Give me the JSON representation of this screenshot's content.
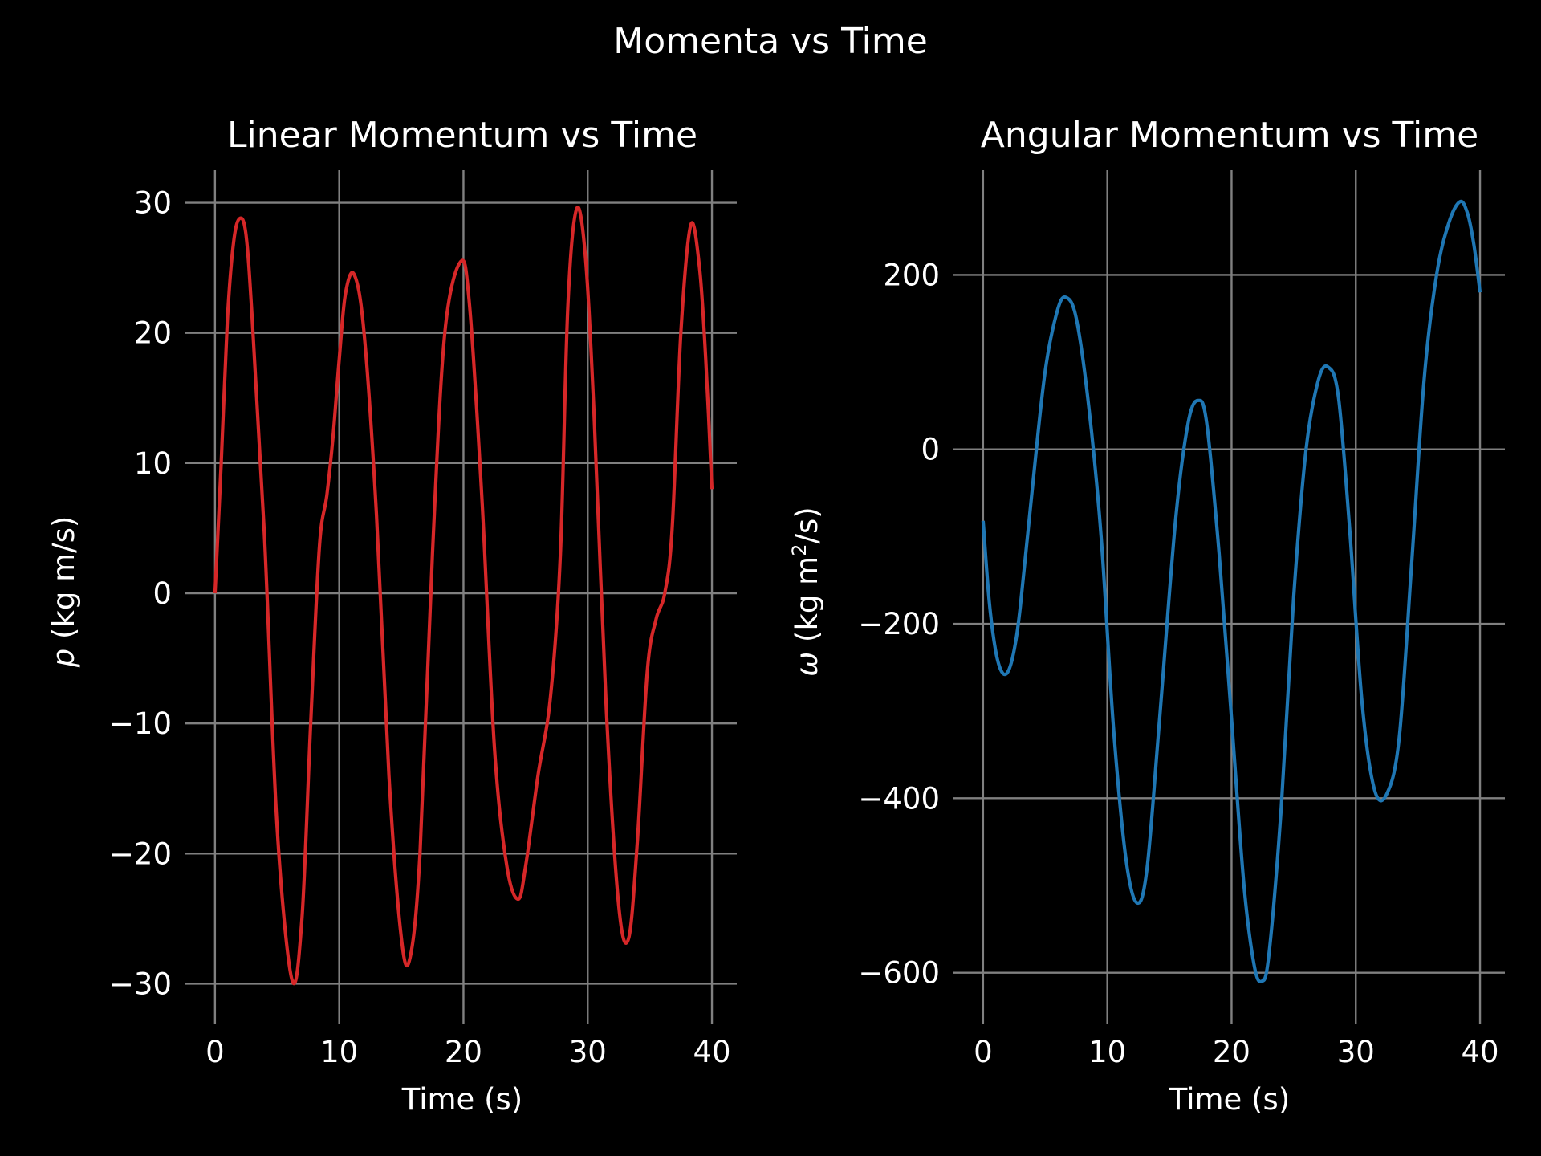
{
  "figure": {
    "title": "Momenta vs Time",
    "background": "#000000",
    "text_color": "#ffffff",
    "grid_color": "#808080"
  },
  "chart_data": [
    {
      "type": "line",
      "title": "Linear Momentum vs Time",
      "xlabel": "Time (s)",
      "ylabel": {
        "symbol": "p",
        "text": " (kg m/s)"
      },
      "xlim": [
        -1.8,
        42
      ],
      "ylim": [
        -32.5,
        32.5
      ],
      "xticks": [
        0,
        10,
        20,
        30,
        40
      ],
      "xtick_labels": [
        "0",
        "10",
        "20",
        "30",
        "40"
      ],
      "yticks": [
        -30,
        -20,
        -10,
        0,
        10,
        20,
        30
      ],
      "ytick_labels": [
        "−30",
        "−20",
        "−10",
        "0",
        "10",
        "20",
        "30"
      ],
      "grid": true,
      "series": [
        {
          "color": "#d62728",
          "x": [
            0,
            0.5,
            1.0,
            1.5,
            2.0,
            2.5,
            3.0,
            4.0,
            5.0,
            6.2,
            7.0,
            7.7,
            8.4,
            9.0,
            9.5,
            10.0,
            10.5,
            11.2,
            12.0,
            13.0,
            14.0,
            15.0,
            15.7,
            16.5,
            17.5,
            18.5,
            19.8,
            20.5,
            21.5,
            22.5,
            23.5,
            24.4,
            25.0,
            26.0,
            27.0,
            27.8,
            28.4,
            29.1,
            29.8,
            30.5,
            31.5,
            32.5,
            33.3,
            34.0,
            34.8,
            35.5,
            36.2,
            36.8,
            37.5,
            38.3,
            39.0,
            39.5,
            40.0
          ],
          "y": [
            0,
            10,
            21,
            27,
            28.8,
            27.5,
            21,
            4,
            -18,
            -29.7,
            -25,
            -10,
            3.5,
            7.5,
            12,
            18,
            23,
            24.5,
            20,
            6,
            -14,
            -26.5,
            -28,
            -20,
            3,
            20,
            25.5,
            22,
            7,
            -12,
            -21,
            -23.5,
            -21,
            -14,
            -8,
            3,
            22,
            29.5,
            26,
            14,
            -9,
            -24,
            -26.5,
            -19,
            -6,
            -2,
            0,
            5,
            20,
            28.3,
            25,
            18,
            8
          ]
        }
      ]
    },
    {
      "type": "line",
      "title": "Angular Momentum vs Time",
      "xlabel": "Time (s)",
      "ylabel": {
        "symbol": "ω",
        "text": " (kg m",
        "sup": "2",
        "text_after": "/s)"
      },
      "xlim": [
        -1.8,
        42
      ],
      "ylim": [
        -650,
        320
      ],
      "xticks": [
        0,
        10,
        20,
        30,
        40
      ],
      "xtick_labels": [
        "0",
        "10",
        "20",
        "30",
        "40"
      ],
      "yticks": [
        -600,
        -400,
        -200,
        0,
        200
      ],
      "ytick_labels": [
        "−600",
        "−400",
        "−200",
        "0",
        "200"
      ],
      "grid": true,
      "series": [
        {
          "color": "#1f77b4",
          "x": [
            0,
            0.5,
            1.0,
            1.5,
            2.0,
            2.5,
            3.0,
            4.0,
            5.0,
            6.0,
            6.7,
            7.5,
            8.5,
            9.5,
            10.5,
            11.5,
            12.4,
            13.2,
            14.2,
            15.5,
            16.5,
            17.3,
            18.0,
            19.0,
            20.0,
            21.0,
            21.8,
            22.4,
            23.0,
            24.0,
            25.0,
            26.0,
            27.0,
            27.8,
            28.6,
            29.5,
            30.5,
            31.5,
            32.5,
            33.5,
            34.5,
            35.5,
            36.5,
            37.5,
            38.4,
            39.0,
            39.5,
            40.0
          ],
          "y": [
            -82,
            -175,
            -230,
            -255,
            -255,
            -230,
            -180,
            -40,
            90,
            160,
            174,
            150,
            50,
            -100,
            -320,
            -470,
            -520,
            -480,
            -310,
            -80,
            30,
            56,
            30,
            -120,
            -310,
            -500,
            -590,
            -610,
            -580,
            -410,
            -170,
            0,
            80,
            94,
            60,
            -90,
            -290,
            -390,
            -395,
            -330,
            -130,
            80,
            200,
            260,
            284,
            270,
            235,
            180
          ]
        }
      ]
    }
  ]
}
